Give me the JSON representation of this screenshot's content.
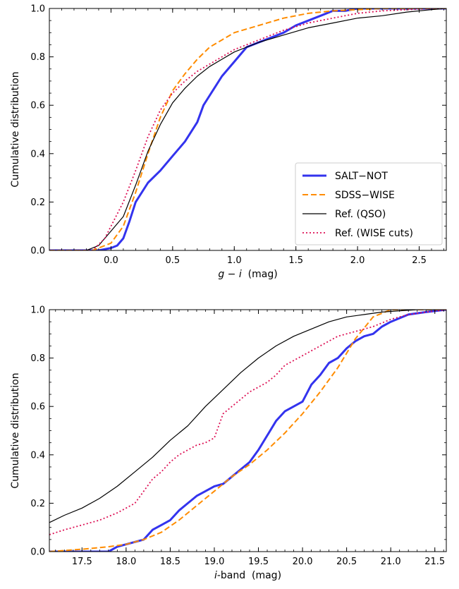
{
  "chart_data": [
    {
      "type": "line",
      "xlabel_parts": [
        "g",
        " − ",
        "i",
        "  (mag)"
      ],
      "ylabel": "Cumulative distribution",
      "xlim": [
        -0.5,
        2.72
      ],
      "ylim": [
        0,
        1.0
      ],
      "xticks": [
        "0.0",
        "0.5",
        "1.0",
        "1.5",
        "2.0",
        "2.5"
      ],
      "xtick_values": [
        0.0,
        0.5,
        1.0,
        1.5,
        2.0,
        2.5
      ],
      "yticks": [
        "0.0",
        "0.2",
        "0.4",
        "0.6",
        "0.8",
        "1.0"
      ],
      "ytick_values": [
        0.0,
        0.2,
        0.4,
        0.6,
        0.8,
        1.0
      ],
      "legend": "lower-right",
      "series": [
        {
          "name": "SALT−NOT",
          "color": "#3333ee",
          "x": [
            -0.5,
            -0.1,
            0.0,
            0.05,
            0.1,
            0.15,
            0.2,
            0.3,
            0.4,
            0.5,
            0.6,
            0.7,
            0.75,
            0.8,
            0.9,
            1.0,
            1.1,
            1.2,
            1.3,
            1.4,
            1.5,
            1.6,
            1.7,
            1.8,
            1.9,
            2.0,
            2.72
          ],
          "y": [
            0.0,
            0.0,
            0.01,
            0.02,
            0.05,
            0.12,
            0.2,
            0.28,
            0.33,
            0.39,
            0.45,
            0.53,
            0.6,
            0.64,
            0.72,
            0.78,
            0.84,
            0.86,
            0.88,
            0.9,
            0.93,
            0.95,
            0.97,
            0.99,
            0.99,
            1.0,
            1.0
          ]
        },
        {
          "name": "SDSS−WISE",
          "color": "#ff8c00",
          "x": [
            -0.5,
            -0.15,
            0.0,
            0.1,
            0.2,
            0.3,
            0.4,
            0.5,
            0.6,
            0.7,
            0.8,
            0.9,
            1.0,
            1.2,
            1.4,
            1.6,
            1.8,
            2.0,
            2.2,
            2.72
          ],
          "y": [
            0.0,
            0.0,
            0.03,
            0.1,
            0.24,
            0.4,
            0.55,
            0.66,
            0.73,
            0.79,
            0.84,
            0.87,
            0.9,
            0.93,
            0.96,
            0.98,
            0.99,
            0.995,
            1.0,
            1.0
          ]
        },
        {
          "name": "Ref. (QSO)",
          "color": "#000000",
          "x": [
            -0.5,
            -0.2,
            -0.1,
            0.0,
            0.1,
            0.2,
            0.3,
            0.4,
            0.5,
            0.6,
            0.7,
            0.8,
            0.9,
            1.0,
            1.2,
            1.4,
            1.6,
            1.8,
            2.0,
            2.2,
            2.4,
            2.6,
            2.72
          ],
          "y": [
            0.0,
            0.0,
            0.02,
            0.08,
            0.14,
            0.27,
            0.41,
            0.52,
            0.61,
            0.67,
            0.72,
            0.76,
            0.79,
            0.82,
            0.86,
            0.89,
            0.92,
            0.94,
            0.96,
            0.97,
            0.985,
            0.995,
            1.0
          ]
        },
        {
          "name": "Ref. (WISE cuts)",
          "color": "#dd1155",
          "x": [
            -0.5,
            -0.15,
            -0.05,
            0.0,
            0.1,
            0.2,
            0.3,
            0.4,
            0.5,
            0.6,
            0.7,
            0.8,
            0.9,
            1.0,
            1.2,
            1.4,
            1.6,
            1.8,
            2.0,
            2.2,
            2.4,
            2.6,
            2.72
          ],
          "y": [
            0.0,
            0.0,
            0.05,
            0.1,
            0.2,
            0.33,
            0.47,
            0.58,
            0.65,
            0.7,
            0.74,
            0.77,
            0.8,
            0.83,
            0.87,
            0.91,
            0.94,
            0.96,
            0.98,
            0.99,
            0.995,
            1.0,
            1.0
          ]
        }
      ]
    },
    {
      "type": "line",
      "xlabel_parts": [
        "i",
        "-band  (mag)"
      ],
      "ylabel": "Cumulative distribution",
      "xlim": [
        17.13,
        21.63
      ],
      "ylim": [
        0,
        1.0
      ],
      "xticks": [
        "17.5",
        "18.0",
        "18.5",
        "19.0",
        "19.5",
        "20.0",
        "20.5",
        "21.0",
        "21.5"
      ],
      "xtick_values": [
        17.5,
        18.0,
        18.5,
        19.0,
        19.5,
        20.0,
        20.5,
        21.0,
        21.5
      ],
      "yticks": [
        "0.0",
        "0.2",
        "0.4",
        "0.6",
        "0.8",
        "1.0"
      ],
      "ytick_values": [
        0.0,
        0.2,
        0.4,
        0.6,
        0.8,
        1.0
      ],
      "series": [
        {
          "name": "SALT−NOT",
          "color": "#3333ee",
          "x": [
            17.13,
            17.8,
            17.9,
            18.0,
            18.2,
            18.3,
            18.4,
            18.5,
            18.6,
            18.7,
            18.8,
            18.9,
            19.0,
            19.1,
            19.2,
            19.3,
            19.4,
            19.5,
            19.6,
            19.7,
            19.8,
            19.9,
            20.0,
            20.1,
            20.2,
            20.3,
            20.4,
            20.5,
            20.6,
            20.7,
            20.8,
            20.9,
            21.0,
            21.2,
            21.4,
            21.63
          ],
          "y": [
            0.0,
            0.0,
            0.02,
            0.03,
            0.05,
            0.09,
            0.11,
            0.13,
            0.17,
            0.2,
            0.23,
            0.25,
            0.27,
            0.28,
            0.31,
            0.34,
            0.37,
            0.42,
            0.48,
            0.54,
            0.58,
            0.6,
            0.62,
            0.69,
            0.73,
            0.78,
            0.8,
            0.84,
            0.87,
            0.89,
            0.9,
            0.93,
            0.95,
            0.98,
            0.99,
            1.0
          ]
        },
        {
          "name": "SDSS−WISE",
          "color": "#ff8c00",
          "x": [
            17.13,
            17.5,
            17.8,
            18.0,
            18.2,
            18.4,
            18.6,
            18.8,
            19.0,
            19.2,
            19.4,
            19.6,
            19.8,
            20.0,
            20.2,
            20.4,
            20.6,
            20.8,
            21.0,
            21.2,
            21.63
          ],
          "y": [
            0.0,
            0.01,
            0.02,
            0.03,
            0.05,
            0.08,
            0.13,
            0.19,
            0.25,
            0.31,
            0.36,
            0.42,
            0.49,
            0.57,
            0.66,
            0.76,
            0.88,
            0.97,
            1.0,
            1.0,
            1.0
          ]
        },
        {
          "name": "Ref. (QSO)",
          "color": "#000000",
          "x": [
            17.13,
            17.3,
            17.5,
            17.7,
            17.9,
            18.1,
            18.3,
            18.5,
            18.7,
            18.9,
            19.1,
            19.3,
            19.5,
            19.7,
            19.9,
            20.1,
            20.3,
            20.5,
            20.7,
            20.9,
            21.1,
            21.3,
            21.5,
            21.63
          ],
          "y": [
            0.12,
            0.15,
            0.18,
            0.22,
            0.27,
            0.33,
            0.39,
            0.46,
            0.52,
            0.6,
            0.67,
            0.74,
            0.8,
            0.85,
            0.89,
            0.92,
            0.95,
            0.97,
            0.98,
            0.99,
            0.995,
            1.0,
            1.0,
            1.0
          ]
        },
        {
          "name": "Ref. (WISE cuts)",
          "color": "#dd1155",
          "x": [
            17.13,
            17.3,
            17.5,
            17.7,
            17.9,
            18.1,
            18.2,
            18.3,
            18.4,
            18.5,
            18.6,
            18.7,
            18.8,
            18.9,
            19.0,
            19.05,
            19.1,
            19.2,
            19.3,
            19.4,
            19.5,
            19.6,
            19.7,
            19.8,
            20.0,
            20.2,
            20.4,
            20.6,
            20.8,
            21.0,
            21.2,
            21.4,
            21.63
          ],
          "y": [
            0.07,
            0.09,
            0.11,
            0.13,
            0.16,
            0.2,
            0.25,
            0.3,
            0.33,
            0.37,
            0.4,
            0.42,
            0.44,
            0.45,
            0.47,
            0.52,
            0.57,
            0.6,
            0.63,
            0.66,
            0.68,
            0.7,
            0.73,
            0.77,
            0.81,
            0.85,
            0.89,
            0.91,
            0.93,
            0.96,
            0.98,
            0.99,
            1.0
          ]
        }
      ]
    }
  ]
}
